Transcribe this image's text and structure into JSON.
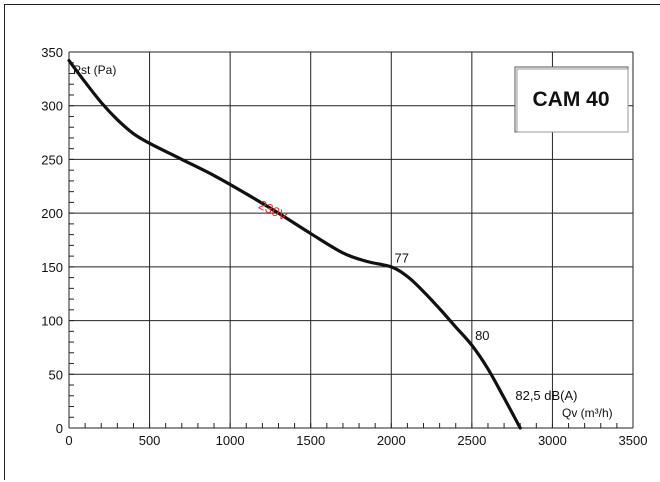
{
  "chart_data": {
    "type": "line",
    "model": "CAM 40",
    "xlabel": "Qv (m³/h)",
    "ylabel": "Pst (Pa)",
    "xlim": [
      0,
      3500
    ],
    "ylim": [
      0,
      350
    ],
    "xticks": [
      0,
      500,
      1000,
      1500,
      2000,
      2500,
      3000,
      3500
    ],
    "yticks": [
      0,
      50,
      100,
      150,
      200,
      250,
      300,
      350
    ],
    "grid": true,
    "series": [
      {
        "name": "230V",
        "color": "#111111",
        "x": [
          0,
          100,
          200,
          300,
          400,
          500,
          700,
          900,
          1100,
          1300,
          1500,
          1700,
          1850,
          2000,
          2100,
          2200,
          2300,
          2400,
          2500,
          2600,
          2700,
          2800
        ],
        "y": [
          342,
          322,
          303,
          287,
          274,
          265,
          250,
          235,
          218,
          200,
          181,
          163,
          155,
          150,
          141,
          127,
          111,
          94,
          77,
          55,
          28,
          0
        ]
      }
    ],
    "annotations": [
      {
        "text": "230V",
        "x": 1170,
        "y": 205,
        "color": "#d8342a",
        "rotation": 26
      },
      {
        "text": "77",
        "x": 2020,
        "y": 154
      },
      {
        "text": "80",
        "x": 2520,
        "y": 82
      },
      {
        "text": "82,5 dB(A)",
        "x": 2770,
        "y": 26
      }
    ]
  }
}
